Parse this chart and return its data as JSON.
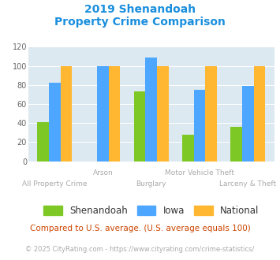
{
  "title_line1": "2019 Shenandoah",
  "title_line2": "Property Crime Comparison",
  "categories": [
    "All Property Crime",
    "Arson",
    "Burglary",
    "Motor Vehicle Theft",
    "Larceny & Theft"
  ],
  "shenandoah": [
    41,
    0,
    73,
    28,
    36
  ],
  "iowa": [
    82,
    100,
    109,
    75,
    79
  ],
  "national": [
    100,
    100,
    100,
    100,
    100
  ],
  "colors": {
    "shenandoah": "#7ec825",
    "iowa": "#4da6ff",
    "national": "#ffb732"
  },
  "ylim": [
    0,
    120
  ],
  "yticks": [
    0,
    20,
    40,
    60,
    80,
    100,
    120
  ],
  "bg_color": "#dce9f0",
  "title_color": "#1a8fdd",
  "xtick_color": "#aaaaaa",
  "legend_label_color": "#333333",
  "footnote1": "Compared to U.S. average. (U.S. average equals 100)",
  "footnote2": "© 2025 CityRating.com - https://www.cityrating.com/crime-statistics/",
  "footnote1_color": "#cc4400",
  "footnote2_color": "#aaaaaa",
  "row1_labels": [
    "All Property Crime",
    "Burglary",
    "Larceny & Theft"
  ],
  "row1_indices": [
    0,
    2,
    4
  ],
  "row2_labels": [
    "Arson",
    "Motor Vehicle Theft"
  ],
  "row2_indices": [
    1,
    3
  ]
}
